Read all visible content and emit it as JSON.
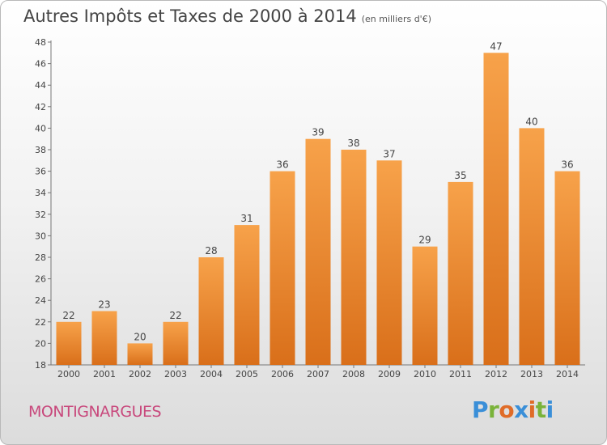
{
  "title": "Autres Impôts et Taxes de 2000 à 2014",
  "unit": "(en milliers d'€)",
  "commune": "MONTIGNARGUES",
  "logo": {
    "p": "P",
    "r": "r",
    "o": "o",
    "x": "x",
    "i1": "i",
    "t": "t",
    "i2": "i"
  },
  "colors": {
    "bar_top": "#f7a24a",
    "bar_bottom": "#d96f1a",
    "commune": "#c8487c"
  },
  "chart_data": {
    "type": "bar",
    "categories": [
      "2000",
      "2001",
      "2002",
      "2003",
      "2004",
      "2005",
      "2006",
      "2007",
      "2008",
      "2009",
      "2010",
      "2011",
      "2012",
      "2013",
      "2014"
    ],
    "values": [
      22,
      23,
      20,
      22,
      28,
      31,
      36,
      39,
      38,
      37,
      29,
      35,
      47,
      40,
      36
    ],
    "ylim": [
      18,
      48
    ],
    "yticks": [
      18,
      20,
      22,
      24,
      26,
      28,
      30,
      32,
      34,
      36,
      38,
      40,
      42,
      44,
      46,
      48
    ],
    "grid": false,
    "data_labels": true
  }
}
